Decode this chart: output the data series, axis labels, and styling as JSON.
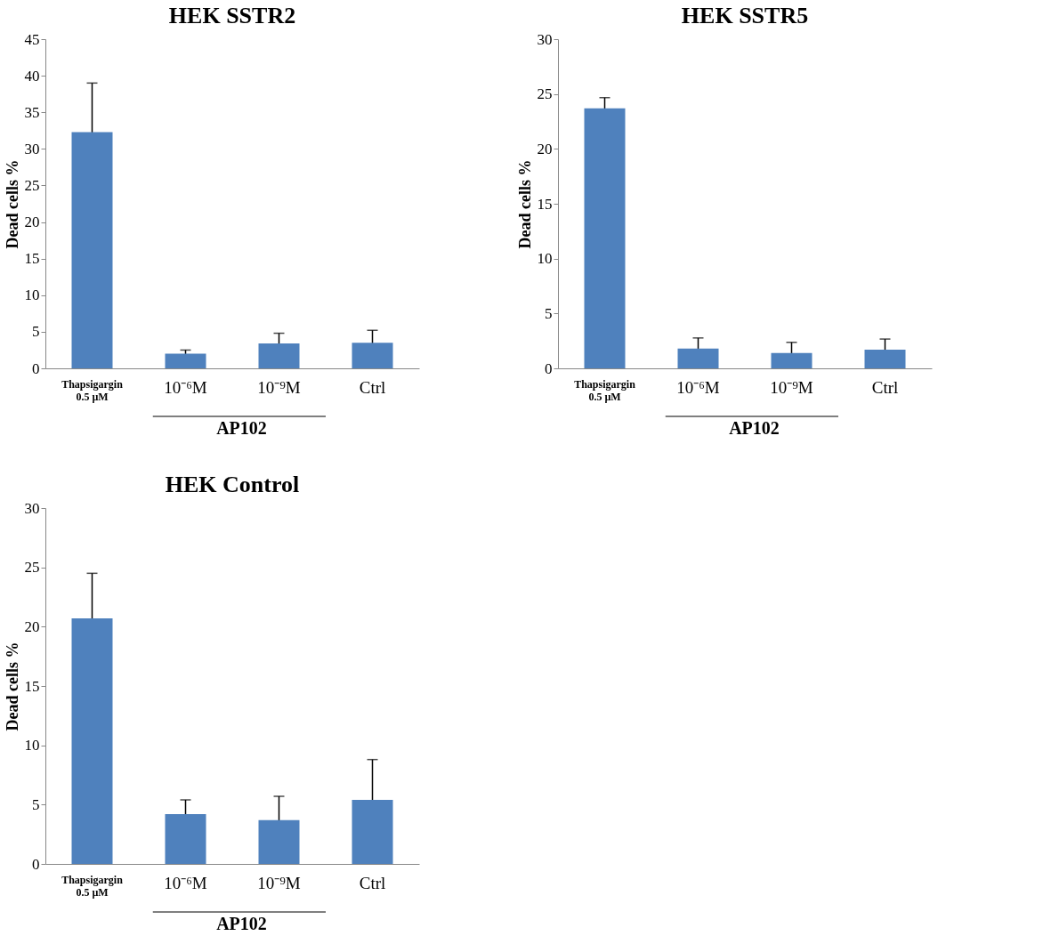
{
  "chart_data": [
    {
      "type": "bar",
      "title": "HEK SSTR2",
      "ylabel": "Dead cells %",
      "categories": [
        "Thapsigargin\n0.5 µM",
        "10⁻⁶M",
        "10⁻⁹M",
        "Ctrl"
      ],
      "values": [
        32.3,
        2.0,
        3.4,
        3.5
      ],
      "errors": [
        6.7,
        0.5,
        1.4,
        1.7
      ],
      "color": "#4f81bd",
      "ylim": [
        0,
        45
      ],
      "yticks": [
        0,
        5,
        10,
        15,
        20,
        25,
        30,
        35,
        40,
        45
      ],
      "annotations": [
        "AP102"
      ]
    },
    {
      "type": "bar",
      "title": "HEK SSTR5",
      "ylabel": "Dead cells %",
      "categories": [
        "Thapsigargin\n0.5 µM",
        "10⁻⁶M",
        "10⁻⁹M",
        "Ctrl"
      ],
      "values": [
        23.7,
        1.8,
        1.4,
        1.7
      ],
      "errors": [
        0.97,
        0.97,
        0.97,
        0.97
      ],
      "color": "#4f81bd",
      "ylim": [
        0,
        30
      ],
      "yticks": [
        0,
        5,
        10,
        15,
        20,
        25,
        30
      ],
      "annotations": [
        "AP102"
      ]
    },
    {
      "type": "bar",
      "title": "HEK Control",
      "ylabel": "Dead cells %",
      "categories": [
        "Thapsigargin\n0.5 µM",
        "10⁻⁶M",
        "10⁻⁹M",
        "Ctrl"
      ],
      "values": [
        20.7,
        4.2,
        3.7,
        5.4
      ],
      "errors": [
        3.8,
        1.2,
        2.0,
        3.4
      ],
      "color": "#4f81bd",
      "ylim": [
        0,
        30
      ],
      "yticks": [
        0,
        5,
        10,
        15,
        20,
        25,
        30
      ],
      "annotations": [
        "AP102"
      ]
    }
  ]
}
